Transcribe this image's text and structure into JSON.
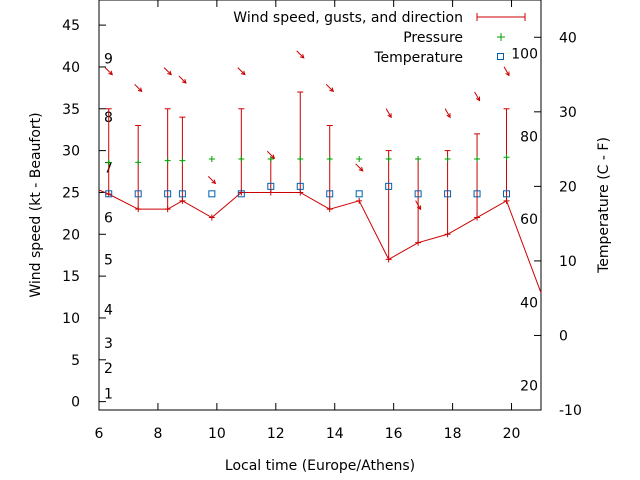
{
  "chart_data": {
    "type": "line",
    "xlabel": "Local time (Europe/Athens)",
    "ylabel": "Wind speed (kt - Beaufort)",
    "y2label": "Temperature (C - F)",
    "xlim": [
      6,
      21
    ],
    "ylim": [
      -1,
      48
    ],
    "y2lim": [
      -10,
      45
    ],
    "grid": false,
    "legend_position": "top-right",
    "x_ticks": [
      "6",
      "8",
      "10",
      "12",
      "14",
      "16",
      "18",
      "20"
    ],
    "x_tick_values": [
      6,
      8,
      10,
      12,
      14,
      16,
      18,
      20
    ],
    "y_ticks": [
      "0",
      "5",
      "10",
      "15",
      "20",
      "25",
      "30",
      "35",
      "40",
      "45"
    ],
    "y_tick_values": [
      0,
      5,
      10,
      15,
      20,
      25,
      30,
      35,
      40,
      45
    ],
    "y2_ticks": [
      "-10",
      "0",
      "10",
      "20",
      "30",
      "40"
    ],
    "y2_tick_values": [
      -10,
      0,
      10,
      20,
      30,
      40
    ],
    "beaufort_labels": [
      {
        "text": "1",
        "y": 1
      },
      {
        "text": "2",
        "y": 4
      },
      {
        "text": "3",
        "y": 7
      },
      {
        "text": "4",
        "y": 11
      },
      {
        "text": "5",
        "y": 17
      },
      {
        "text": "6",
        "y": 22
      },
      {
        "text": "7",
        "y": 28
      },
      {
        "text": "8",
        "y": 34
      },
      {
        "text": "9",
        "y": 41
      }
    ],
    "fahrenheit_labels": [
      {
        "text": "20",
        "y2": -6.7
      },
      {
        "text": "40",
        "y2": 4.4
      },
      {
        "text": "60",
        "y2": 15.6
      },
      {
        "text": "80",
        "y2": 26.7
      },
      {
        "text": "100",
        "y2": 37.8
      }
    ],
    "legend": {
      "wind": "Wind speed, gusts, and direction",
      "pressure": "Pressure",
      "temperature": "Temperature"
    },
    "wind_series": [
      {
        "x": 6.0,
        "speed": 25.3,
        "gust": null
      },
      {
        "x": 6.33,
        "speed": 24.8,
        "gust": 35
      },
      {
        "x": 7.33,
        "speed": 23,
        "gust": 33
      },
      {
        "x": 8.33,
        "speed": 23,
        "gust": 35
      },
      {
        "x": 8.83,
        "speed": 24,
        "gust": 34
      },
      {
        "x": 9.83,
        "speed": 22,
        "gust": null
      },
      {
        "x": 10.83,
        "speed": 25,
        "gust": 35
      },
      {
        "x": 11.83,
        "speed": 25,
        "gust": 29
      },
      {
        "x": 12.83,
        "speed": 25,
        "gust": 37
      },
      {
        "x": 13.83,
        "speed": 23,
        "gust": 33
      },
      {
        "x": 14.83,
        "speed": 24,
        "gust": null
      },
      {
        "x": 15.83,
        "speed": 17,
        "gust": 30
      },
      {
        "x": 16.83,
        "speed": 19,
        "gust": 29
      },
      {
        "x": 17.83,
        "speed": 20,
        "gust": 30
      },
      {
        "x": 18.83,
        "speed": 22,
        "gust": 32
      },
      {
        "x": 19.83,
        "speed": 24,
        "gust": 35
      },
      {
        "x": 21.0,
        "speed": 13,
        "gust": null
      }
    ],
    "direction_arrows": [
      {
        "x": 6.33,
        "y": 39.5,
        "angle": 45
      },
      {
        "x": 7.33,
        "y": 37.5,
        "angle": 45
      },
      {
        "x": 8.33,
        "y": 39.5,
        "angle": 45
      },
      {
        "x": 8.83,
        "y": 38.5,
        "angle": 45
      },
      {
        "x": 9.83,
        "y": 26.5,
        "angle": 45
      },
      {
        "x": 10.83,
        "y": 39.5,
        "angle": 45
      },
      {
        "x": 11.83,
        "y": 29.5,
        "angle": 45
      },
      {
        "x": 12.83,
        "y": 41.5,
        "angle": 45
      },
      {
        "x": 13.83,
        "y": 37.5,
        "angle": 45
      },
      {
        "x": 14.83,
        "y": 28.0,
        "angle": 45
      },
      {
        "x": 15.83,
        "y": 34.5,
        "angle": 60
      },
      {
        "x": 16.83,
        "y": 23.5,
        "angle": 60
      },
      {
        "x": 17.83,
        "y": 34.5,
        "angle": 60
      },
      {
        "x": 18.83,
        "y": 36.5,
        "angle": 60
      },
      {
        "x": 19.83,
        "y": 39.5,
        "angle": 60
      }
    ],
    "pressure_points": [
      {
        "x": 6.33,
        "y": 28.6
      },
      {
        "x": 7.33,
        "y": 28.6
      },
      {
        "x": 8.33,
        "y": 28.8
      },
      {
        "x": 8.83,
        "y": 28.8
      },
      {
        "x": 9.83,
        "y": 29.0
      },
      {
        "x": 10.83,
        "y": 29.0
      },
      {
        "x": 11.83,
        "y": 29.0
      },
      {
        "x": 12.83,
        "y": 29.0
      },
      {
        "x": 13.83,
        "y": 29.0
      },
      {
        "x": 14.83,
        "y": 29.0
      },
      {
        "x": 15.83,
        "y": 29.0
      },
      {
        "x": 16.83,
        "y": 29.0
      },
      {
        "x": 17.83,
        "y": 29.0
      },
      {
        "x": 18.83,
        "y": 29.0
      },
      {
        "x": 19.83,
        "y": 29.2
      }
    ],
    "temperature_points": [
      {
        "x": 6.33,
        "y2": 19
      },
      {
        "x": 7.33,
        "y2": 19
      },
      {
        "x": 8.33,
        "y2": 19
      },
      {
        "x": 8.83,
        "y2": 19
      },
      {
        "x": 9.83,
        "y2": 19
      },
      {
        "x": 10.83,
        "y2": 19
      },
      {
        "x": 11.83,
        "y2": 20
      },
      {
        "x": 12.83,
        "y2": 20
      },
      {
        "x": 13.83,
        "y2": 19
      },
      {
        "x": 14.83,
        "y2": 19
      },
      {
        "x": 15.83,
        "y2": 20
      },
      {
        "x": 16.83,
        "y2": 19
      },
      {
        "x": 17.83,
        "y2": 19
      },
      {
        "x": 18.83,
        "y2": 19
      },
      {
        "x": 19.83,
        "y2": 19
      }
    ],
    "colors": {
      "wind": "#cc0000",
      "pressure": "#00a000",
      "temperature": "#0060ad",
      "axis": "#000000"
    }
  }
}
